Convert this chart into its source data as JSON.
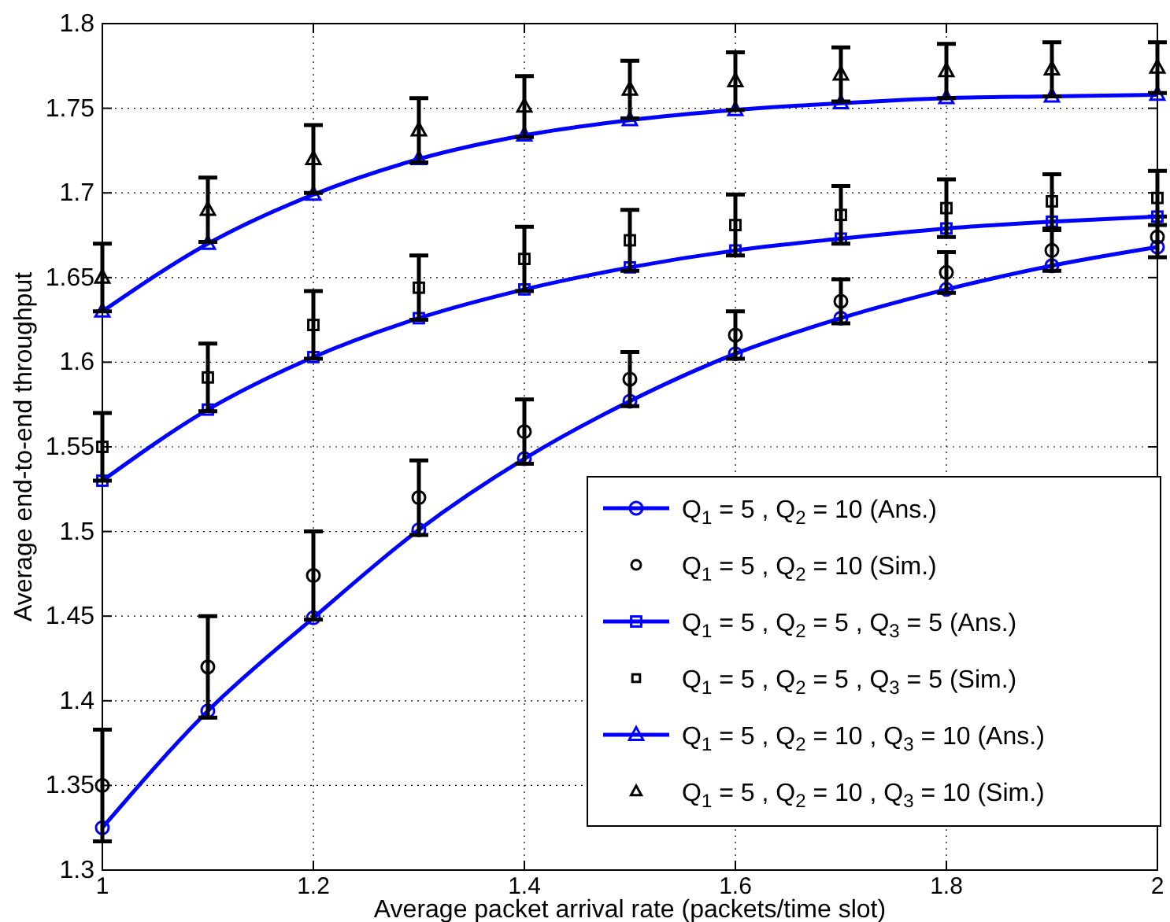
{
  "chart_data": {
    "type": "line",
    "xlabel": "Average packet arrival rate (packets/time slot)",
    "ylabel": "Average end-to-end throughput",
    "x": [
      1,
      1.1,
      1.2,
      1.3,
      1.4,
      1.5,
      1.6,
      1.7,
      1.8,
      1.9,
      2
    ],
    "xlim": [
      1,
      2
    ],
    "xticks": [
      1,
      1.2,
      1.4,
      1.6,
      1.8,
      2
    ],
    "ylim": [
      1.3,
      1.8
    ],
    "yticks": [
      1.3,
      1.35,
      1.4,
      1.45,
      1.5,
      1.55,
      1.6,
      1.65,
      1.7,
      1.75,
      1.8
    ],
    "grid": true,
    "legend": "bottom right",
    "line_style": "solid",
    "series": [
      {
        "name": "Q$_{1}$ = 5 , Q$_{2}$ = 10 (Ans.)",
        "color": "#0000ff",
        "marker": "circle",
        "values": [
          1.325,
          1.394,
          1.449,
          1.501,
          1.543,
          1.577,
          1.605,
          1.626,
          1.643,
          1.657,
          1.668
        ]
      },
      {
        "name": "Q$_{1}$ = 5 , Q$_{2}$ = 10 (Sim.)",
        "type": "scatter",
        "color": "#000000",
        "marker": "circle",
        "values": [
          1.35,
          1.42,
          1.474,
          1.52,
          1.559,
          1.59,
          1.616,
          1.636,
          1.653,
          1.666,
          1.674
        ],
        "errors": [
          0.033,
          0.03,
          0.026,
          0.022,
          0.019,
          0.016,
          0.014,
          0.013,
          0.012,
          0.012,
          0.012
        ]
      },
      {
        "name": "Q$_{1}$ = 5 , Q$_{2}$ = 5 , Q$_{3}$ = 5 (Ans.)",
        "color": "#0000ff",
        "marker": "square",
        "values": [
          1.53,
          1.572,
          1.603,
          1.626,
          1.643,
          1.656,
          1.666,
          1.673,
          1.679,
          1.683,
          1.686
        ]
      },
      {
        "name": "Q$_{1}$ = 5 , Q$_{2}$ = 5 , Q$_{3}$ = 5 (Sim.)",
        "type": "scatter",
        "color": "#000000",
        "marker": "square",
        "values": [
          1.55,
          1.591,
          1.622,
          1.644,
          1.661,
          1.672,
          1.681,
          1.687,
          1.691,
          1.695,
          1.697
        ],
        "errors": [
          0.02,
          0.02,
          0.02,
          0.019,
          0.019,
          0.018,
          0.018,
          0.017,
          0.017,
          0.016,
          0.016
        ]
      },
      {
        "name": "Q$_{1}$ = 5 , Q$_{2}$ = 10 , Q$_{3}$ = 10 (Ans.)",
        "color": "#0000ff",
        "marker": "triangle",
        "values": [
          1.63,
          1.67,
          1.699,
          1.72,
          1.734,
          1.743,
          1.749,
          1.753,
          1.756,
          1.757,
          1.758
        ]
      },
      {
        "name": "Q$_{1}$ = 5 , Q$_{2}$ = 10 , Q$_{3}$ = 10 (Sim.)",
        "type": "scatter",
        "color": "#000000",
        "marker": "triangle",
        "values": [
          1.65,
          1.69,
          1.72,
          1.737,
          1.751,
          1.761,
          1.766,
          1.77,
          1.772,
          1.773,
          1.774
        ],
        "errors": [
          0.02,
          0.019,
          0.02,
          0.019,
          0.018,
          0.017,
          0.017,
          0.016,
          0.016,
          0.016,
          0.015
        ]
      }
    ]
  }
}
